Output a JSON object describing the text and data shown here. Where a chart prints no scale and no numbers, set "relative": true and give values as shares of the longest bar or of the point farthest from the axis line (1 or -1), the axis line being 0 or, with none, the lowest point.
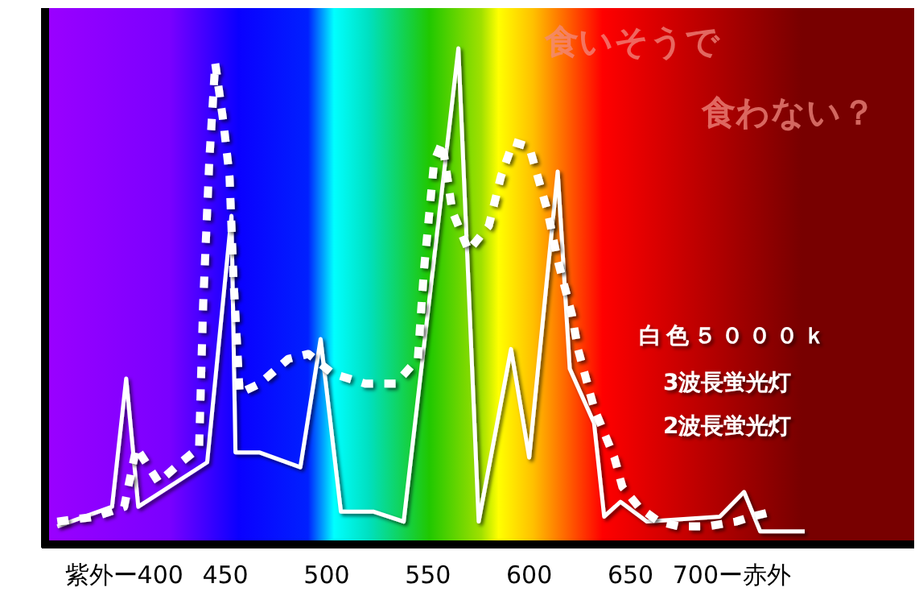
{
  "chart_data": {
    "type": "line",
    "relative": true,
    "xlim": [
      359,
      790
    ],
    "xticks": [
      {
        "value": 400,
        "label": "紫外ー400"
      },
      450,
      500,
      550,
      600,
      650,
      {
        "value": 700,
        "label": "700ー赤外"
      }
    ],
    "legend": "right",
    "legend_title": "白色５０００ｋ",
    "annotations": [
      "食いそうで",
      "食わない？"
    ],
    "series": [
      {
        "name": "3波長蛍光灯",
        "color": "#ffffff",
        "line_style": "solid",
        "x": [
          367,
          394,
          401,
          407,
          441,
          453,
          455,
          467,
          487,
          497,
          507,
          523,
          538,
          565,
          575,
          591,
          600,
          614,
          620,
          632,
          637,
          645,
          658,
          694,
          706,
          714,
          736
        ],
        "values": [
          0.03,
          0.07,
          0.33,
          0.07,
          0.16,
          0.66,
          0.18,
          0.18,
          0.15,
          0.41,
          0.06,
          0.06,
          0.04,
          1,
          0.04,
          0.39,
          0.17,
          0.75,
          0.35,
          0.24,
          0.05,
          0.08,
          0.04,
          0.05,
          0.1,
          0.02,
          0.02
        ]
      },
      {
        "name": "2波長蛍光灯",
        "color": "#ffffff",
        "line_style": "dotted",
        "x": [
          367,
          386,
          400,
          406,
          417,
          428,
          437,
          439,
          442,
          445,
          449,
          452,
          454,
          457,
          467,
          481,
          491,
          503,
          519,
          534,
          545,
          548,
          553,
          557,
          562,
          570,
          580,
          586,
          592,
          600,
          609,
          614,
          621,
          624,
          628,
          632,
          637,
          642,
          646,
          654,
          664,
          674,
          688,
          702,
          710,
          720
        ],
        "values": [
          0.04,
          0.05,
          0.07,
          0.19,
          0.12,
          0.16,
          0.19,
          0.48,
          0.77,
          0.97,
          0.85,
          0.74,
          0.53,
          0.3,
          0.32,
          0.37,
          0.38,
          0.34,
          0.32,
          0.32,
          0.37,
          0.55,
          0.77,
          0.81,
          0.67,
          0.59,
          0.64,
          0.74,
          0.81,
          0.8,
          0.67,
          0.57,
          0.46,
          0.39,
          0.33,
          0.27,
          0.22,
          0.17,
          0.11,
          0.07,
          0.04,
          0.03,
          0.03,
          0.04,
          0.05,
          0.06
        ]
      }
    ]
  }
}
